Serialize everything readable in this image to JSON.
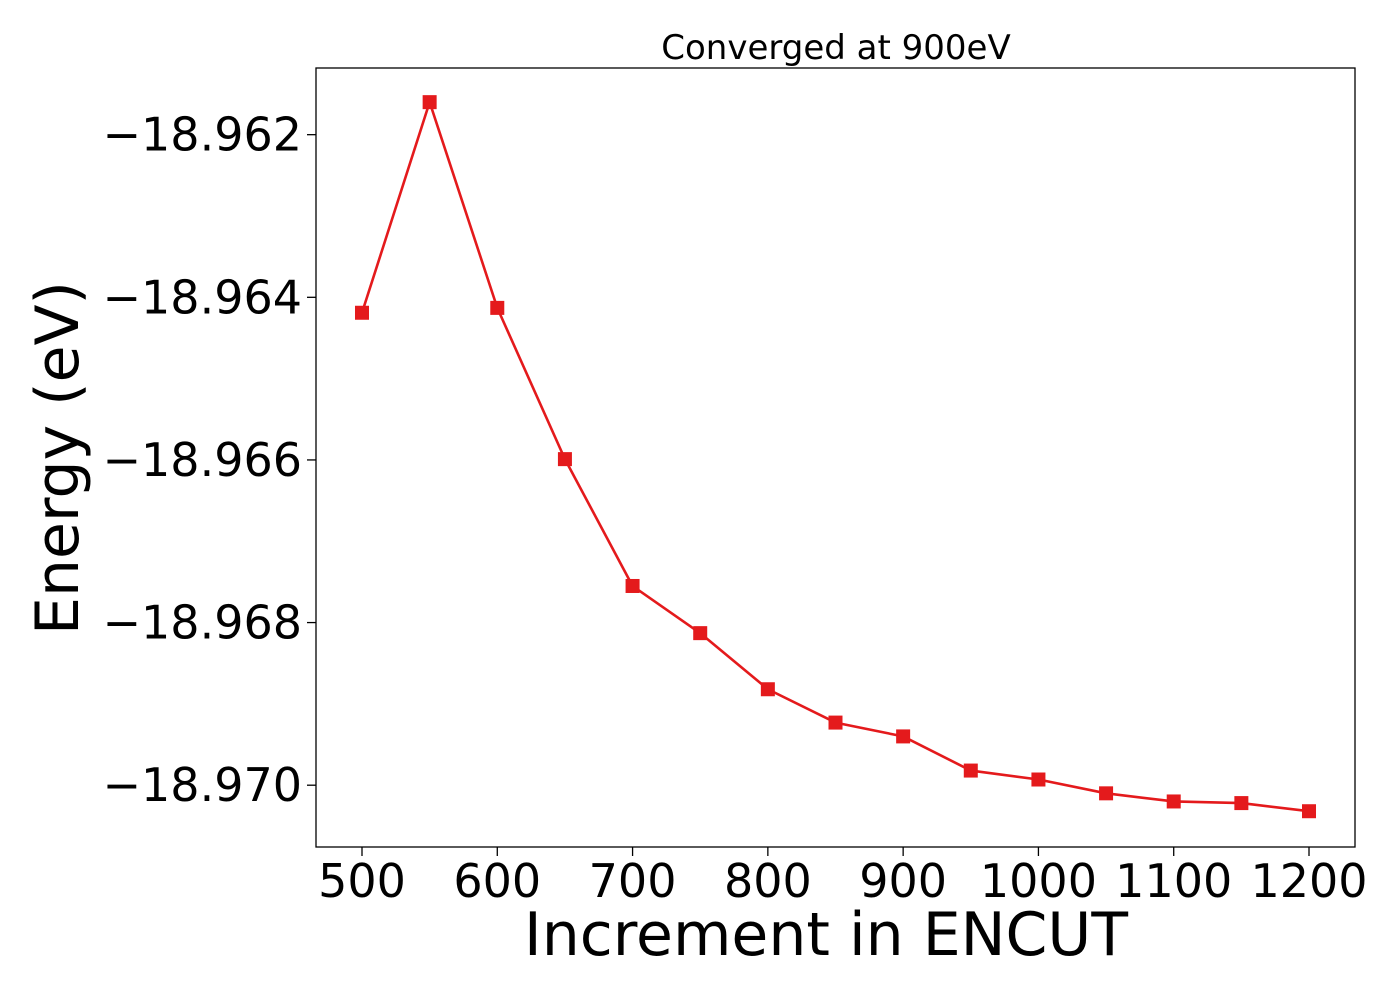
{
  "chart_data": {
    "type": "line",
    "title": "Converged at 900eV",
    "xlabel": "Increment in ENCUT",
    "ylabel": "Energy (eV)",
    "xlim": [
      466,
      1234
    ],
    "ylim": [
      -18.97076,
      -18.96118
    ],
    "x_ticks": [
      500,
      600,
      700,
      800,
      900,
      1000,
      1100,
      1200
    ],
    "x_tick_labels": [
      "500",
      "600",
      "700",
      "800",
      "900",
      "1000",
      "1100",
      "1200"
    ],
    "y_ticks": [
      -18.962,
      -18.964,
      -18.966,
      -18.968,
      -18.97
    ],
    "y_tick_labels": [
      "−18.962",
      "−18.964",
      "−18.966",
      "−18.968",
      "−18.970"
    ],
    "grid": false,
    "series": [
      {
        "color": "#e41a1c",
        "marker": "square",
        "x": [
          500,
          550,
          600,
          650,
          700,
          750,
          800,
          850,
          900,
          950,
          1000,
          1050,
          1100,
          1150,
          1200
        ],
        "y": [
          -18.96419,
          -18.9616,
          -18.96413,
          -18.96599,
          -18.96755,
          -18.96813,
          -18.96882,
          -18.96923,
          -18.9694,
          -18.96982,
          -18.96993,
          -18.9701,
          -18.9702,
          -18.97022,
          -18.97032
        ]
      }
    ]
  }
}
